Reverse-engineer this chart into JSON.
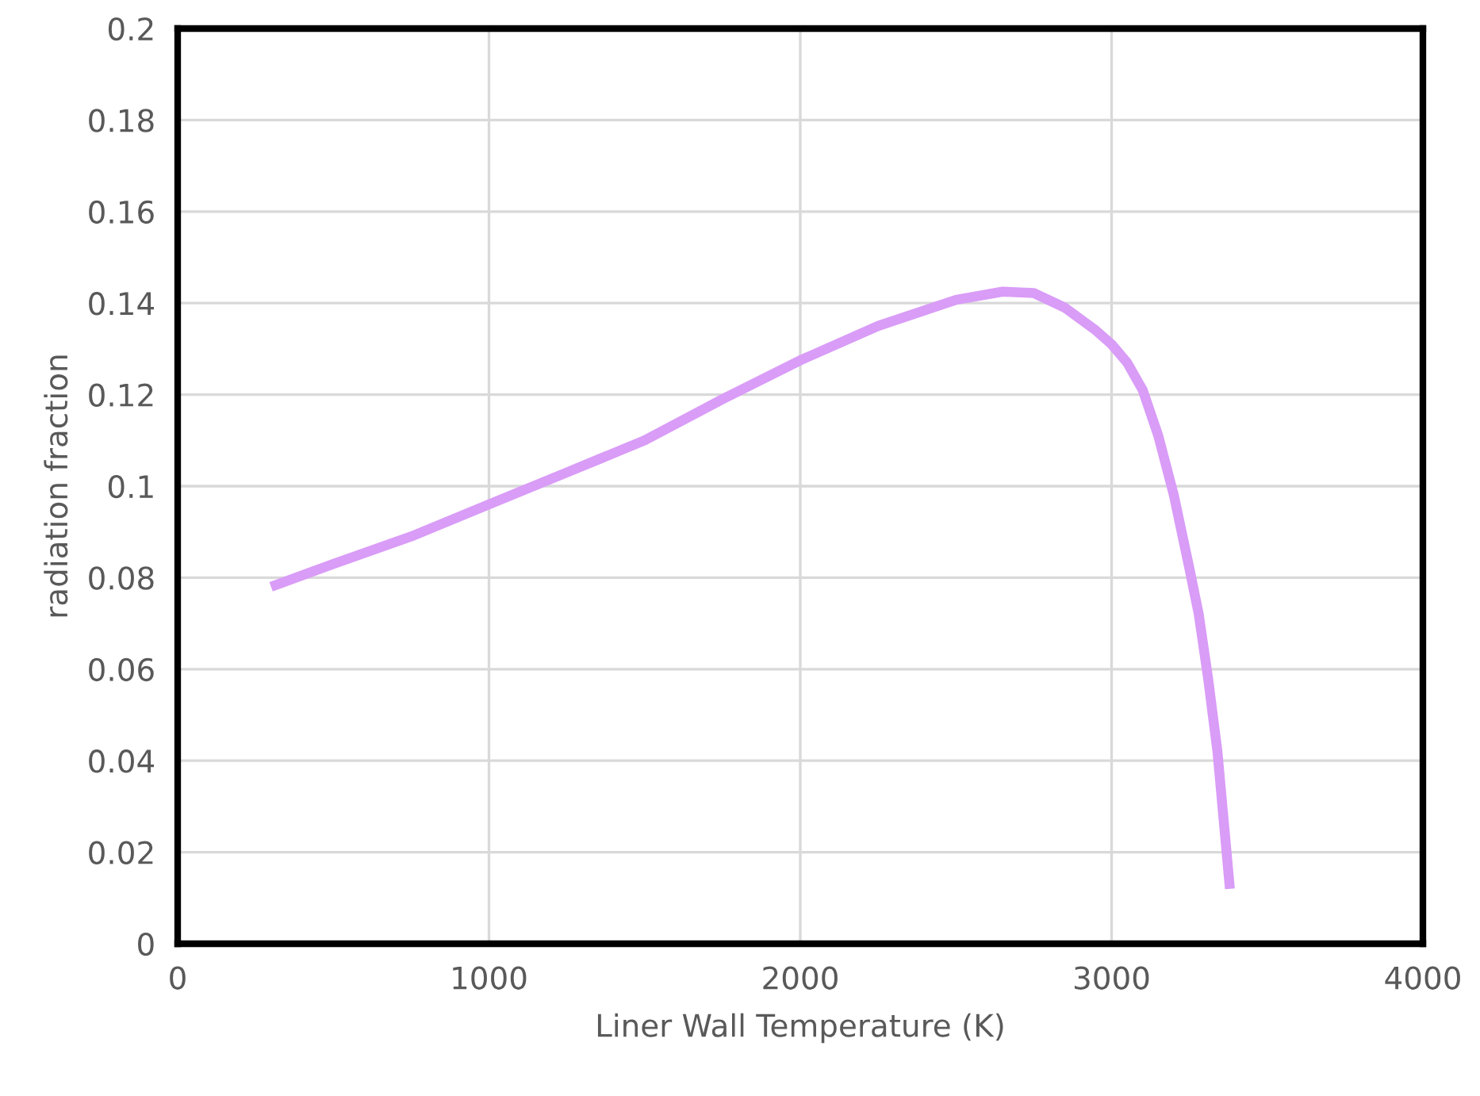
{
  "chart_data": {
    "type": "line",
    "xlabel": "Liner Wall Temperature (K)",
    "ylabel": "radiation fraction",
    "series": [
      {
        "color": "#d99cf7",
        "x": [
          300,
          500,
          750,
          1000,
          1250,
          1500,
          1750,
          2000,
          2250,
          2500,
          2650,
          2750,
          2850,
          2950,
          3000,
          3050,
          3100,
          3150,
          3200,
          3250,
          3280,
          3310,
          3340,
          3360,
          3380
        ],
        "values": [
          0.078,
          0.083,
          0.089,
          0.096,
          0.103,
          0.11,
          0.119,
          0.1275,
          0.135,
          0.1407,
          0.1425,
          0.1422,
          0.139,
          0.134,
          0.131,
          0.127,
          0.121,
          0.111,
          0.098,
          0.082,
          0.072,
          0.058,
          0.042,
          0.027,
          0.012
        ]
      }
    ],
    "xlim": [
      0,
      4000
    ],
    "ylim": [
      0,
      0.2
    ],
    "xticks": [
      0,
      1000,
      2000,
      3000,
      4000
    ],
    "yticks": [
      0,
      0.02,
      0.04,
      0.06,
      0.08,
      0.1,
      0.12,
      0.14,
      0.16,
      0.18,
      0.2
    ],
    "grid": true,
    "marker": "none",
    "line_style": "solid",
    "legend": false
  }
}
